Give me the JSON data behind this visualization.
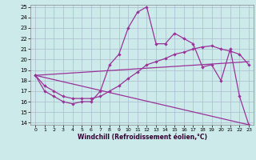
{
  "xlabel": "Windchill (Refroidissement éolien,°C)",
  "bg_color": "#cceaea",
  "line_color": "#993399",
  "grid_color": "#aabbcc",
  "xlim": [
    -0.5,
    23.5
  ],
  "ylim": [
    13.8,
    25.2
  ],
  "xticks": [
    0,
    1,
    2,
    3,
    4,
    5,
    6,
    7,
    8,
    9,
    10,
    11,
    12,
    13,
    14,
    15,
    16,
    17,
    18,
    19,
    20,
    21,
    22,
    23
  ],
  "yticks": [
    14,
    15,
    16,
    17,
    18,
    19,
    20,
    21,
    22,
    23,
    24,
    25
  ],
  "line1_x": [
    0,
    1,
    2,
    3,
    4,
    5,
    6,
    7,
    8,
    9,
    10,
    11,
    12,
    13,
    14,
    15,
    16,
    17,
    18,
    19,
    20,
    21,
    22,
    23
  ],
  "line1_y": [
    18.5,
    17.0,
    16.5,
    16.0,
    15.8,
    16.0,
    16.0,
    17.0,
    19.5,
    20.5,
    23.0,
    24.5,
    25.0,
    21.5,
    21.5,
    22.5,
    22.0,
    21.5,
    19.3,
    19.5,
    18.0,
    21.0,
    16.5,
    13.8
  ],
  "line2_x": [
    0,
    1,
    2,
    3,
    4,
    5,
    6,
    7,
    8,
    9,
    10,
    11,
    12,
    13,
    14,
    15,
    16,
    17,
    18,
    19,
    20,
    21,
    22,
    23
  ],
  "line2_y": [
    18.5,
    17.5,
    17.0,
    16.5,
    16.3,
    16.3,
    16.3,
    16.5,
    17.0,
    17.5,
    18.2,
    18.8,
    19.5,
    19.8,
    20.1,
    20.5,
    20.7,
    21.0,
    21.2,
    21.3,
    21.0,
    20.8,
    20.5,
    19.5
  ],
  "line3_x": [
    0,
    23
  ],
  "line3_y": [
    18.5,
    19.8
  ],
  "line4_x": [
    0,
    23
  ],
  "line4_y": [
    18.5,
    13.8
  ]
}
